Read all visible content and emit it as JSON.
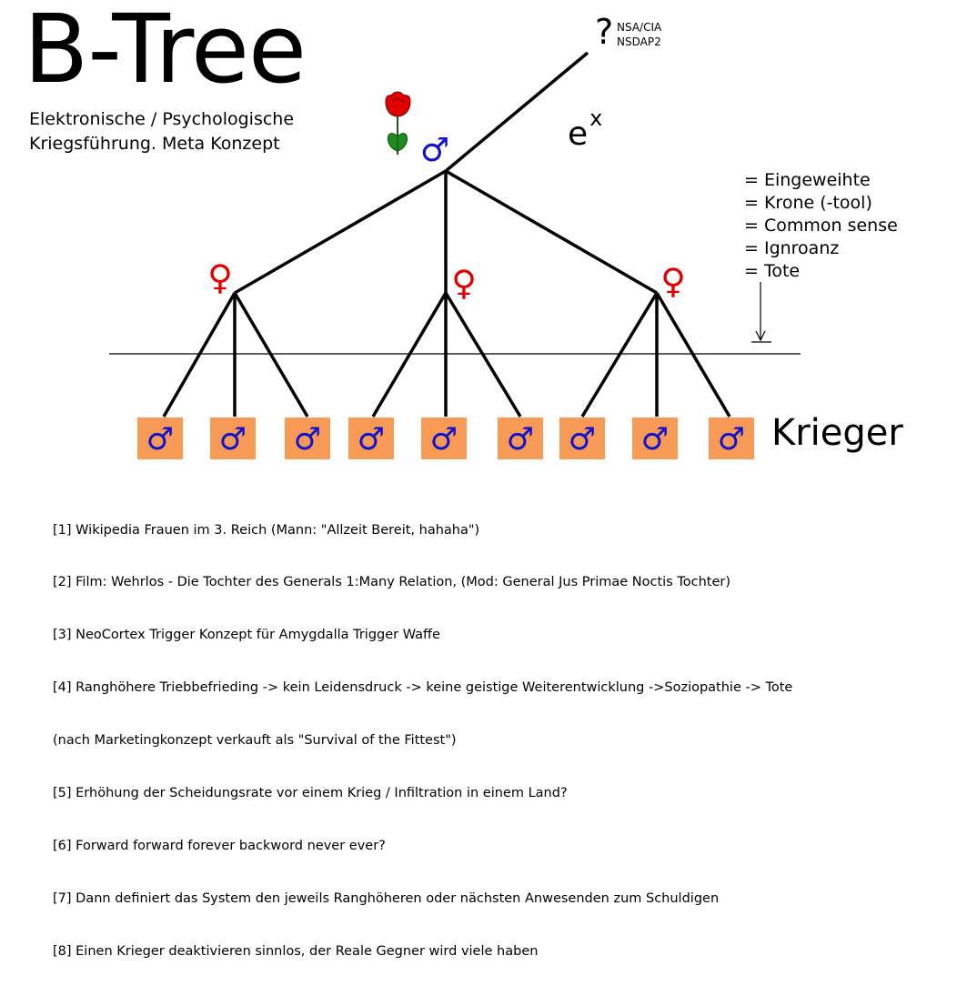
{
  "title": "B-Tree",
  "subtitle_lines": [
    "Elektronische / Psychologische",
    "Kriegsführung. Meta Konzept"
  ],
  "top_question": "?",
  "top_labels": [
    "NSA/CIA",
    "NSDAP2"
  ],
  "exp_base": "e",
  "exp_power": "x",
  "legend": [
    "= Eingeweihte",
    "= Krone (-tool)",
    "= Common sense",
    "= Ignroanz",
    "= Tote"
  ],
  "warrior_label": "Krieger",
  "symbols": {
    "male": "♂",
    "female": "♀"
  },
  "colors": {
    "male": "#1010d0",
    "female": "#e00000",
    "box": "#f79a55",
    "rose_red": "#e00000",
    "leaf_green": "#1f8a1f"
  },
  "icons": [
    "rose-icon",
    "arrow-down-icon"
  ],
  "notes": [
    "[1] Wikipedia Frauen im 3. Reich (Mann: \"Allzeit Bereit, hahaha\")",
    "[2] Film: Wehrlos - Die Tochter des Generals 1:Many Relation, (Mod: General Jus Primae Noctis Tochter)",
    "[3] NeoCortex Trigger Konzept für Amygdalla Trigger Waffe",
    "[4] Ranghöhere Triebbefrieding -> kein Leidensdruck -> keine geistige Weiterentwicklung ->Soziopathie -> Tote",
    "(nach Marketingkonzept verkauft als \"Survival of the Fittest\")",
    "[5] Erhöhung der Scheidungsrate vor einem Krieg / Infiltration in einem Land?",
    "[6] Forward forward forever backword never ever?",
    "[7] Dann definiert das System den jeweils Ranghöheren oder nächsten Anwesenden zum Schuldigen",
    "[8] Einen Krieger deaktivieren sinnlos, der Reale Gegner wird viele haben"
  ]
}
